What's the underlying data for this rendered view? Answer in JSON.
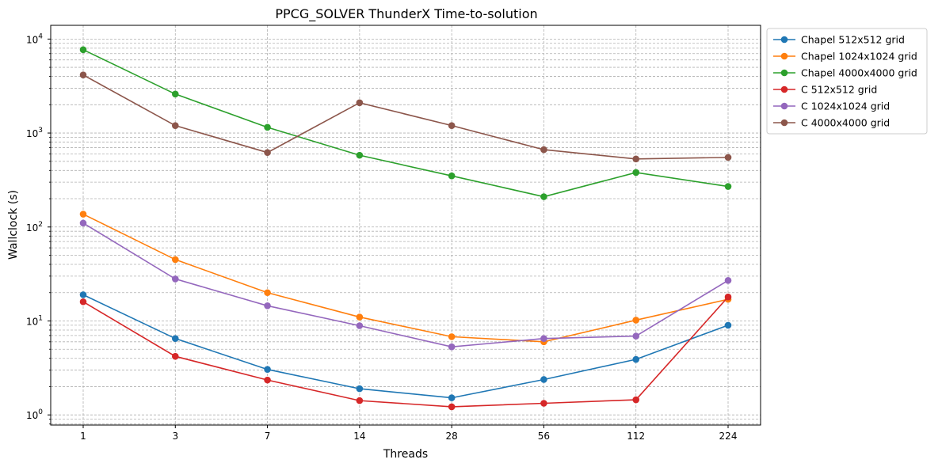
{
  "chart_data": {
    "type": "line",
    "title": "PPCG_SOLVER ThunderX Time-to-solution",
    "xlabel": "Threads",
    "ylabel": "Wallclock (s)",
    "categories": [
      "1",
      "3",
      "7",
      "14",
      "28",
      "56",
      "112",
      "224"
    ],
    "y_scale": "log",
    "ylim": [
      0.78,
      14000
    ],
    "y_ticks": [
      {
        "value": 1,
        "base": "10",
        "exp": "0"
      },
      {
        "value": 10,
        "base": "10",
        "exp": "1"
      },
      {
        "value": 100,
        "base": "10",
        "exp": "2"
      },
      {
        "value": 1000,
        "base": "10",
        "exp": "3"
      },
      {
        "value": 10000,
        "base": "10",
        "exp": "4"
      }
    ],
    "grid": true,
    "grid_minor": true,
    "legend_position": "outside-top-right",
    "series": [
      {
        "name": "Chapel 512x512 grid",
        "color": "#1f77b4",
        "values": [
          19,
          6.5,
          3.05,
          1.9,
          1.52,
          2.38,
          3.9,
          9.0
        ]
      },
      {
        "name": "Chapel 1024x1024 grid",
        "color": "#ff7f0e",
        "values": [
          137,
          45,
          20,
          11,
          6.8,
          6.0,
          10.2,
          17.0
        ]
      },
      {
        "name": "Chapel 4000x4000 grid",
        "color": "#2ca02c",
        "values": [
          7700,
          2600,
          1150,
          580,
          350,
          210,
          380,
          270
        ]
      },
      {
        "name": "C 512x512 grid",
        "color": "#d62728",
        "values": [
          16,
          4.2,
          2.35,
          1.42,
          1.22,
          1.33,
          1.45,
          18.0
        ]
      },
      {
        "name": "C 1024x1024 grid",
        "color": "#9467bd",
        "values": [
          110,
          28,
          14.5,
          8.9,
          5.3,
          6.5,
          6.9,
          27.0
        ]
      },
      {
        "name": "C 4000x4000 grid",
        "color": "#8c564b",
        "values": [
          4150,
          1200,
          620,
          2100,
          1200,
          665,
          530,
          550
        ]
      }
    ]
  }
}
